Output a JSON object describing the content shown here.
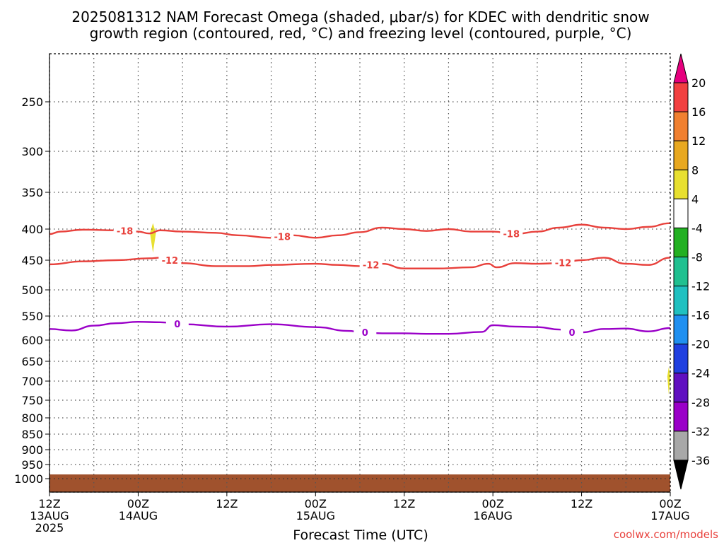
{
  "title_line1": "2025081312 NAM Forecast Omega (shaded, μbar/s) for KDEC with dendritic snow",
  "title_line2": "growth region (contoured, red, °C) and freezing level (contoured, purple, °C)",
  "credit": "coolwx.com/models",
  "chart_data": {
    "type": "area",
    "xlabel": "Forecast Time (UTC)",
    "ylabel": "",
    "y_axis": "pressure (hPa), inverted",
    "ylim": [
      1000,
      200
    ],
    "xlim_hours": [
      0,
      84
    ],
    "grid": true,
    "y_ticks": [
      250,
      300,
      350,
      400,
      450,
      500,
      550,
      600,
      650,
      700,
      750,
      800,
      850,
      900,
      950,
      1000
    ],
    "x_ticks": [
      {
        "hour": 0,
        "lines": [
          "12Z",
          "13AUG",
          "2025"
        ]
      },
      {
        "hour": 12,
        "lines": [
          "00Z",
          "14AUG"
        ]
      },
      {
        "hour": 24,
        "lines": [
          "12Z"
        ]
      },
      {
        "hour": 36,
        "lines": [
          "00Z",
          "15AUG"
        ]
      },
      {
        "hour": 48,
        "lines": [
          "12Z"
        ]
      },
      {
        "hour": 60,
        "lines": [
          "00Z",
          "16AUG"
        ]
      },
      {
        "hour": 72,
        "lines": [
          "12Z"
        ]
      },
      {
        "hour": 84,
        "lines": [
          "00Z",
          "17AUG"
        ]
      }
    ],
    "contours": [
      {
        "label": "-18",
        "color": "#e8413c",
        "hours": [
          0,
          1.5,
          4.5,
          9,
          12,
          13.5,
          15,
          18,
          22.5,
          25.5,
          30,
          33,
          36,
          39,
          42,
          45,
          48,
          51,
          54,
          57,
          60,
          63,
          66,
          69,
          72,
          75,
          78,
          81,
          84
        ],
        "pressure": [
          408,
          404,
          401,
          402,
          404,
          407,
          402,
          404,
          406,
          410,
          414,
          410,
          414,
          410,
          405,
          398,
          400,
          403,
          400,
          404,
          404,
          408,
          404,
          398,
          394,
          398,
          400,
          397,
          392
        ],
        "labels_at_hours": [
          10.2,
          31.5,
          62.5
        ]
      },
      {
        "label": "-12",
        "color": "#e8413c",
        "hours": [
          0,
          4.5,
          9,
          13.5,
          15,
          18,
          22.5,
          27,
          30,
          36,
          39,
          42,
          45,
          48,
          52.5,
          57,
          59.4,
          60.5,
          63,
          66,
          69,
          72,
          75,
          78,
          81,
          84
        ],
        "pressure": [
          457,
          452,
          450,
          447,
          446,
          455,
          460,
          460,
          458,
          456,
          458,
          460,
          456,
          464,
          464,
          462,
          456,
          462,
          455,
          456,
          455,
          450,
          446,
          456,
          458,
          446
        ],
        "labels_at_hours": [
          16.3,
          43.5,
          69.5
        ]
      },
      {
        "label": "0",
        "color": "#9a00c8",
        "hours": [
          0,
          3,
          6,
          9,
          12,
          15,
          18,
          24,
          30,
          36,
          40.5,
          42,
          45,
          48,
          51,
          54,
          58.5,
          60,
          63,
          66,
          69,
          70.5,
          72,
          75,
          78,
          81,
          84
        ],
        "pressure": [
          577,
          580,
          570,
          565,
          562,
          563,
          567,
          572,
          567,
          573,
          581,
          583,
          586,
          586,
          587,
          587,
          583,
          569,
          572,
          573,
          578,
          584,
          584,
          577,
          576,
          582,
          575
        ],
        "labels_at_hours": [
          17.3,
          42.7,
          70.7
        ]
      }
    ],
    "omega_shaded_regions": [
      {
        "range": "4 to 8",
        "color": "#e8e030",
        "hour_start": 13.6,
        "hour_end": 14.4,
        "pressure_top": 392,
        "pressure_bottom": 438
      },
      {
        "range": "4 to 8",
        "color": "#e8e030",
        "hour_start": 83.6,
        "hour_end": 84.0,
        "pressure_top": 665,
        "pressure_bottom": 735
      }
    ],
    "ground": {
      "color": "#a0522d",
      "pressure_top": 990
    }
  },
  "colorbar": {
    "bins": [
      {
        "color": "#e6007e",
        "kind": "top-arrow"
      },
      {
        "color": "#f24040"
      },
      {
        "color": "#f08030"
      },
      {
        "color": "#e8a820"
      },
      {
        "color": "#e8e030"
      },
      {
        "color": "#ffffff"
      },
      {
        "color": "#22b022"
      },
      {
        "color": "#20c090"
      },
      {
        "color": "#20c0c0"
      },
      {
        "color": "#2090f0"
      },
      {
        "color": "#2040e0"
      },
      {
        "color": "#6010c0"
      },
      {
        "color": "#9a00c8"
      },
      {
        "color": "#a8a8a8"
      },
      {
        "color": "#000000",
        "kind": "bottom-arrow"
      }
    ],
    "labels": [
      "20",
      "16",
      "12",
      "8",
      "4",
      "-4",
      "-8",
      "-12",
      "-16",
      "-20",
      "-24",
      "-28",
      "-32",
      "-36"
    ]
  }
}
